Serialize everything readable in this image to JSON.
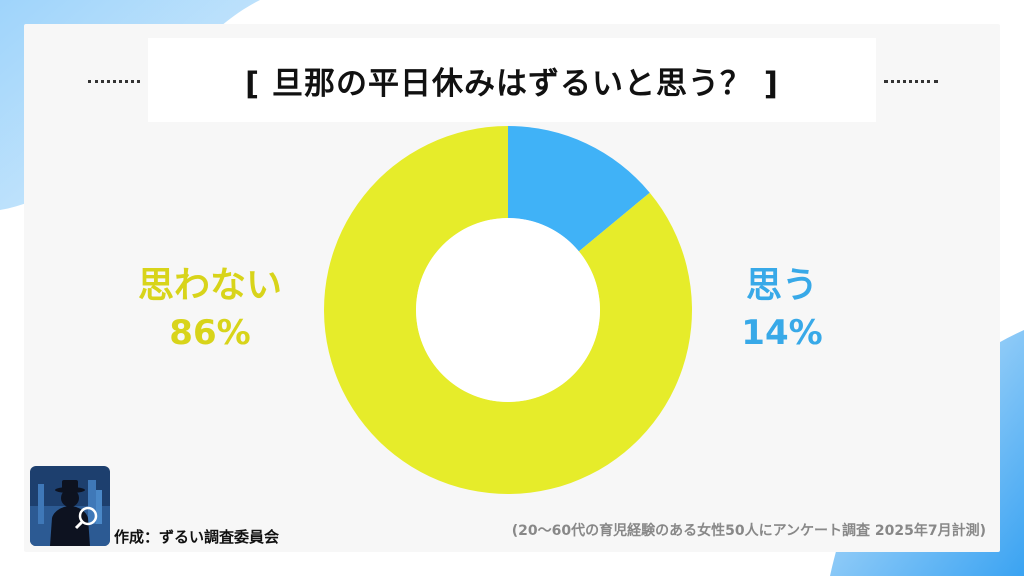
{
  "title": "[ 旦那の平日休みはずるいと思う？ ]",
  "chart_data": {
    "type": "pie",
    "title": "[ 旦那の平日休みはずるいと思う？ ]",
    "donut": true,
    "slices": [
      {
        "label": "思う",
        "value": 14,
        "display": "14%",
        "color": "#40b2f7"
      },
      {
        "label": "思わない",
        "value": 86,
        "display": "86%",
        "color": "#e6ec2a"
      }
    ]
  },
  "labels": {
    "yes_label": "思う",
    "yes_pct": "14%",
    "no_label": "思わない",
    "no_pct": "86%"
  },
  "footer": {
    "credit": "作成：ずるい調査委員会",
    "note": "(20〜60代の育児経験のある女性50人にアンケート調査 2025年7月計測)"
  },
  "colors": {
    "yes": "#40b2f7",
    "no": "#e6ec2a",
    "yes_text": "#38a9e8",
    "no_text": "#d8d41a",
    "accent_blue": "#2f9df0"
  },
  "icons": {
    "logo": "detective-logo-icon"
  }
}
